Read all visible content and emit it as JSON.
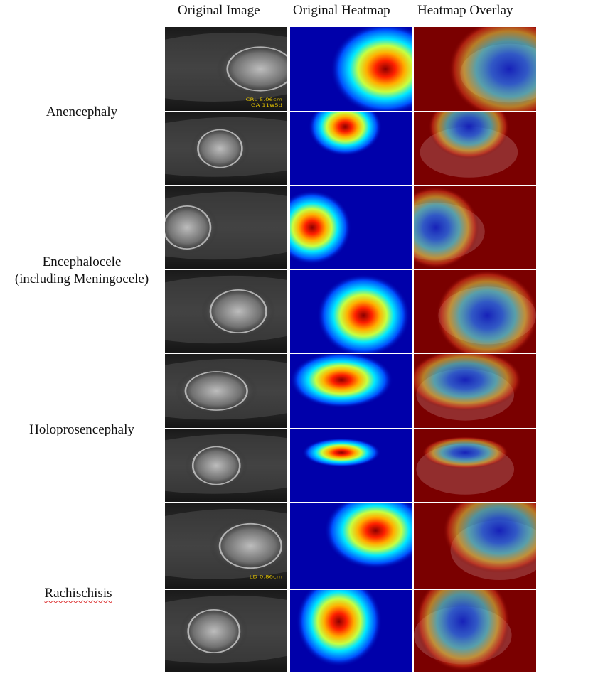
{
  "columns": [
    "Original Image",
    "Original Heatmap",
    "Heatmap Overlay"
  ],
  "row_labels": {
    "anencephaly": "Anencephaly",
    "encephalocele_1": "Encephalocele",
    "encephalocele_2": "(including Meningocele)",
    "holoprosencephaly": "Holoprosencephaly",
    "rachischisis": "Rachischisis"
  },
  "ultrasound_overlays": {
    "row1_text1": "CRL 5.06cm",
    "row1_text2": "GA 11w5d",
    "row7_text1": "LD 0.86cm"
  },
  "colors": {
    "jet_low": "#0000aa",
    "jet_mid": "#00ffff",
    "jet_high": "#ff0000",
    "overlay_base": "#7a0000"
  }
}
